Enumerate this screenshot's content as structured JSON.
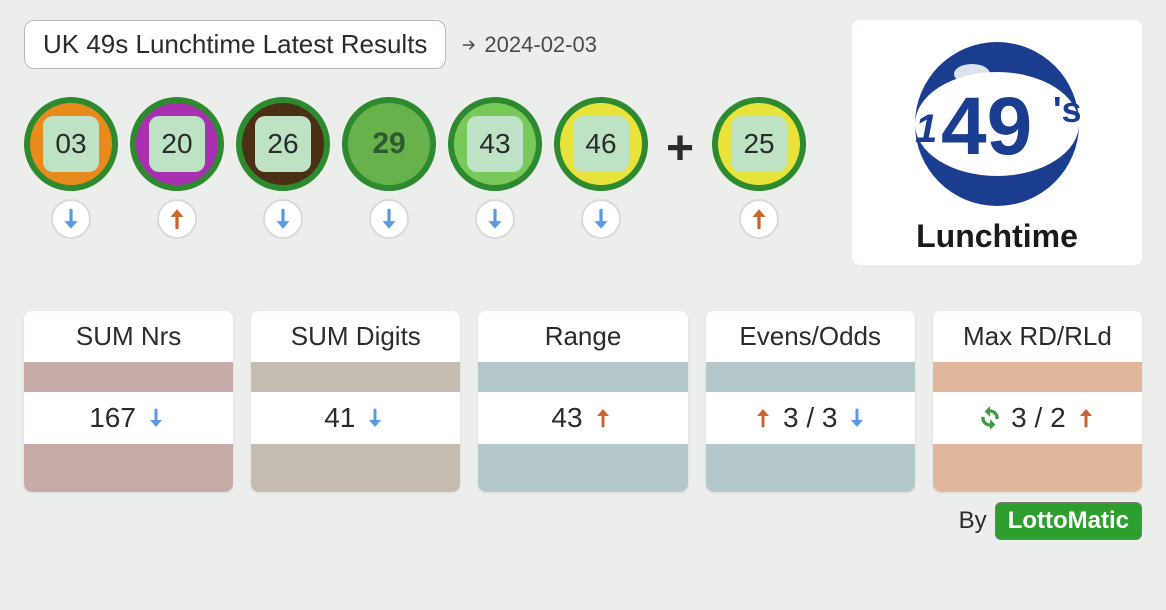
{
  "header": {
    "title": "UK 49s Lunchtime Latest Results",
    "date": "2024-02-03"
  },
  "colors": {
    "arrow_down": "#5b9ae1",
    "arrow_up": "#c9662f",
    "refresh": "#3f9a4a"
  },
  "balls": [
    {
      "number": "03",
      "outer": "#e98a1d",
      "border": "#2e8a2e",
      "show_chip": true,
      "trend": "down"
    },
    {
      "number": "20",
      "outer": "#a82fb0",
      "border": "#2e8a2e",
      "show_chip": true,
      "trend": "up"
    },
    {
      "number": "26",
      "outer": "#4a2f14",
      "border": "#2e8a2e",
      "show_chip": true,
      "trend": "down"
    },
    {
      "number": "29",
      "outer": "#67b24a",
      "border": "#2e8a2e",
      "show_chip": false,
      "trend": "down"
    },
    {
      "number": "43",
      "outer": "#79c95a",
      "border": "#2e8a2e",
      "show_chip": true,
      "trend": "down"
    },
    {
      "number": "46",
      "outer": "#e7e33b",
      "border": "#2e8a2e",
      "show_chip": true,
      "trend": "down"
    }
  ],
  "bonus": {
    "number": "25",
    "outer": "#e7e33b",
    "border": "#2e8a2e",
    "show_chip": true,
    "trend": "up"
  },
  "plus": "+",
  "logo": {
    "top_text": "49",
    "apostrophe_s": "'s",
    "sub_label": "Lunchtime"
  },
  "stats": [
    {
      "title": "SUM Nrs",
      "value": "167",
      "trend_right": "down",
      "band": "#c7aba8"
    },
    {
      "title": "SUM Digits",
      "value": "41",
      "trend_right": "down",
      "band": "#c4bbb1"
    },
    {
      "title": "Range",
      "value": "43",
      "trend_right": "up",
      "band": "#b4c8c9"
    },
    {
      "title": "Evens/Odds",
      "trend_left": "up",
      "value": "3 / 3",
      "trend_right": "down",
      "band": "#b4c8c9"
    },
    {
      "title": "Max RD/RLd",
      "refresh_left": true,
      "value": "3 / 2",
      "trend_right": "up",
      "band": "#e0b79c"
    }
  ],
  "footer": {
    "by": "By",
    "brand": "LottoMatic"
  }
}
